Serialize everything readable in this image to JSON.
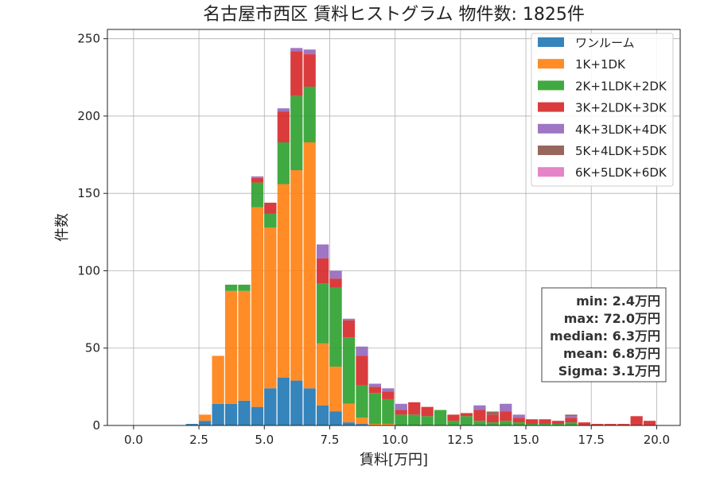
{
  "chart_data": {
    "type": "bar",
    "stacked": true,
    "title": "名古屋市西区 賃料ヒストグラム  物件数: 1825件",
    "xlabel": "賃料[万円]",
    "ylabel": "件数",
    "xlim": [
      -1.0,
      20.9
    ],
    "ylim": [
      0,
      256
    ],
    "xticks": [
      "0.0",
      "2.5",
      "5.0",
      "7.5",
      "10.0",
      "12.5",
      "15.0",
      "17.5",
      "20.0"
    ],
    "yticks": [
      "0",
      "50",
      "100",
      "150",
      "200",
      "250"
    ],
    "grid": true,
    "legend_position": "top-right",
    "bin_width": 0.5,
    "bin_starts": [
      2.0,
      2.5,
      3.0,
      3.5,
      4.0,
      4.5,
      5.0,
      5.5,
      6.0,
      6.5,
      7.0,
      7.5,
      8.0,
      8.5,
      9.0,
      9.5,
      10.0,
      10.5,
      11.0,
      11.5,
      12.0,
      12.5,
      13.0,
      13.5,
      14.0,
      14.5,
      15.0,
      15.5,
      16.0,
      16.5,
      17.0,
      17.5,
      18.0,
      18.5,
      19.0,
      19.5
    ],
    "series": [
      {
        "name": "ワンルーム",
        "color": "#1f77b4",
        "values": [
          1,
          3,
          14,
          14,
          16,
          12,
          24,
          31,
          29,
          24,
          13,
          9,
          2,
          1,
          0,
          0,
          0,
          0,
          0,
          0,
          0,
          0,
          0,
          0,
          0,
          0,
          0,
          0,
          0,
          0,
          0,
          0,
          0,
          0,
          0,
          0
        ]
      },
      {
        "name": "1K+1DK",
        "color": "#ff7f0e",
        "values": [
          0,
          4,
          31,
          73,
          71,
          129,
          104,
          125,
          136,
          159,
          40,
          29,
          12,
          4,
          1,
          1,
          0,
          0,
          0,
          0,
          0,
          0,
          0,
          0,
          0,
          0,
          0,
          0,
          0,
          0,
          0,
          0,
          0,
          0,
          0,
          0
        ]
      },
      {
        "name": "2K+1LDK+2DK",
        "color": "#2ca02c",
        "values": [
          0,
          0,
          0,
          4,
          4,
          16,
          9,
          27,
          48,
          36,
          39,
          51,
          43,
          21,
          20,
          16,
          7,
          7,
          6,
          10,
          3,
          6,
          3,
          2,
          3,
          2,
          1,
          1,
          1,
          2,
          0,
          0,
          0,
          0,
          0,
          0
        ]
      },
      {
        "name": "3K+2LDK+3DK",
        "color": "#d62728",
        "values": [
          0,
          0,
          0,
          0,
          0,
          3,
          7,
          20,
          29,
          21,
          16,
          6,
          11,
          19,
          4,
          5,
          3,
          8,
          6,
          0,
          4,
          2,
          7,
          5,
          6,
          3,
          3,
          3,
          2,
          3,
          2,
          1,
          1,
          1,
          6,
          3
        ]
      },
      {
        "name": "4K+3LDK+4DK",
        "color": "#9467bd",
        "values": [
          0,
          0,
          0,
          0,
          0,
          1,
          0,
          2,
          2,
          3,
          9,
          5,
          1,
          6,
          2,
          2,
          4,
          0,
          0,
          0,
          0,
          0,
          3,
          0,
          5,
          2,
          0,
          0,
          0,
          1,
          0,
          0,
          0,
          0,
          0,
          0
        ]
      },
      {
        "name": "5K+4LDK+5DK",
        "color": "#8c564b",
        "values": [
          0,
          0,
          0,
          0,
          0,
          0,
          0,
          0,
          0,
          0,
          0,
          0,
          0,
          0,
          0,
          0,
          0,
          0,
          0,
          0,
          0,
          0,
          0,
          2,
          0,
          0,
          0,
          0,
          0,
          1,
          0,
          0,
          0,
          0,
          0,
          0
        ]
      },
      {
        "name": "6K+5LDK+6DK",
        "color": "#e377c2",
        "values": [
          0,
          0,
          0,
          0,
          0,
          0,
          0,
          0,
          0,
          0,
          0,
          0,
          0,
          0,
          0,
          0,
          0,
          0,
          0,
          0,
          0,
          0,
          0,
          0,
          0,
          0,
          0,
          0,
          0,
          0,
          0,
          0,
          0,
          0,
          0,
          0
        ]
      }
    ],
    "stats": [
      "min: 2.4万円",
      "max: 72.0万円",
      "median: 6.3万円",
      "mean: 6.8万円",
      "Sigma: 3.1万円"
    ]
  }
}
